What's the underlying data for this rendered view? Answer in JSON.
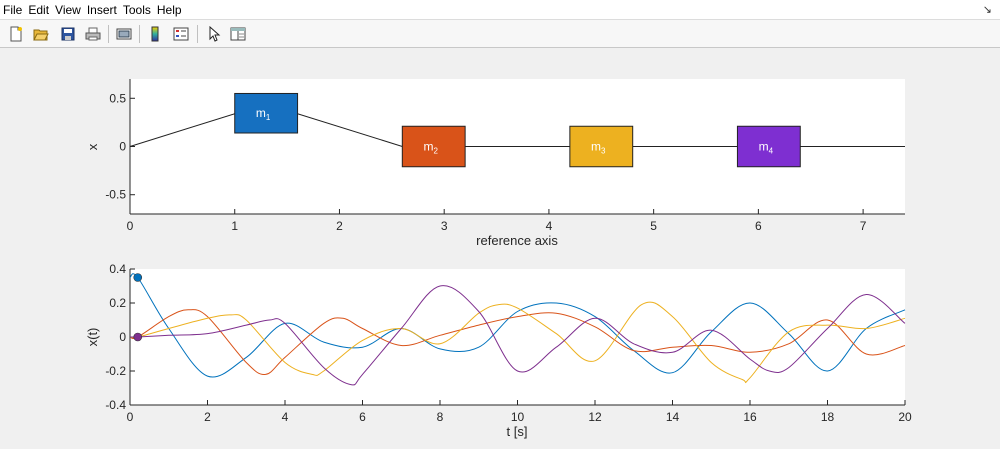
{
  "menu": [
    "File",
    "Edit",
    "View",
    "Insert",
    "Tools",
    "Help"
  ],
  "dock_glyph": "↘",
  "toolbar_icons": [
    "new-figure-icon",
    "open-file-icon",
    "save-icon",
    "print-icon",
    "print-preview-icon",
    "colorbar-icon",
    "legend-icon",
    "pointer-icon",
    "property-editor-icon"
  ],
  "colors": {
    "m1": "#1670c0",
    "m2": "#d95319",
    "m3": "#edb120",
    "m4": "#7e2fd1",
    "c1": "#0072bd",
    "c2": "#d95319",
    "c3": "#edb120",
    "c4": "#7e2f8e"
  },
  "chart_data": [
    {
      "type": "line",
      "xlabel": "reference axis",
      "ylabel": "x",
      "xlim": [
        0,
        7.4
      ],
      "ylim": [
        -0.7,
        0.7
      ],
      "xticks": [
        "0",
        "1",
        "2",
        "3",
        "4",
        "5",
        "6",
        "7"
      ],
      "yticks": [
        "-0.5",
        "0",
        "0.5"
      ],
      "grid": false,
      "spring_line": {
        "x": [
          0,
          1.0,
          1.6,
          2.6,
          3.2,
          4.2,
          4.8,
          5.8,
          6.4,
          7.4
        ],
        "y": [
          0,
          0.34,
          0.34,
          0,
          0,
          0,
          0,
          0,
          0,
          0
        ]
      },
      "masses": [
        {
          "label": "m",
          "sub": "1",
          "x0": 1.0,
          "x1": 1.6,
          "y0": 0.14,
          "y1": 0.55
        },
        {
          "label": "m",
          "sub": "2",
          "x0": 2.6,
          "x1": 3.2,
          "y0": -0.21,
          "y1": 0.21
        },
        {
          "label": "m",
          "sub": "3",
          "x0": 4.2,
          "x1": 4.8,
          "y0": -0.21,
          "y1": 0.21
        },
        {
          "label": "m",
          "sub": "4",
          "x0": 5.8,
          "x1": 6.4,
          "y0": -0.21,
          "y1": 0.21
        }
      ]
    },
    {
      "type": "line",
      "xlabel": "t [s]",
      "ylabel": "x(t)",
      "xlim": [
        0,
        20
      ],
      "ylim": [
        -0.4,
        0.4
      ],
      "xticks": [
        "0",
        "2",
        "4",
        "6",
        "8",
        "10",
        "12",
        "14",
        "16",
        "18",
        "20"
      ],
      "yticks": [
        "-0.4",
        "-0.2",
        "0",
        "0.2",
        "0.4"
      ],
      "grid": false,
      "series": [
        {
          "x": [
            0,
            0.2,
            1,
            2,
            3,
            4,
            5,
            6,
            7,
            8,
            9,
            10,
            11,
            12,
            13,
            14,
            15,
            16,
            17,
            18,
            19,
            20
          ],
          "y": [
            0.35,
            0.35,
            0.05,
            -0.23,
            -0.12,
            0.08,
            -0.03,
            -0.06,
            0.05,
            -0.07,
            -0.06,
            0.15,
            0.2,
            0.12,
            -0.08,
            -0.21,
            0.03,
            0.2,
            0.02,
            -0.2,
            0.05,
            0.16
          ]
        },
        {
          "x": [
            0,
            0.2,
            1,
            1.5,
            2,
            3,
            3.5,
            4,
            5,
            5.5,
            6,
            7,
            8,
            9,
            10,
            11,
            12,
            13,
            14,
            15,
            16,
            17,
            18,
            19,
            20
          ],
          "y": [
            0,
            0,
            0.12,
            0.16,
            0.12,
            -0.15,
            -0.22,
            -0.12,
            0.08,
            0.11,
            0.05,
            -0.05,
            0.01,
            0.07,
            0.12,
            0.14,
            0.06,
            -0.08,
            -0.06,
            -0.05,
            -0.09,
            -0.04,
            0.1,
            -0.1,
            -0.05
          ]
        },
        {
          "x": [
            0,
            0.2,
            1,
            2,
            2.6,
            3,
            4,
            4.7,
            5,
            6,
            7,
            8,
            9,
            9.5,
            10,
            11,
            12,
            13.2,
            14,
            15,
            15.8,
            16,
            17,
            18,
            19,
            20
          ],
          "y": [
            0,
            0,
            0.05,
            0.11,
            0.13,
            0.1,
            -0.15,
            -0.22,
            -0.2,
            -0.02,
            0.05,
            -0.04,
            0.14,
            0.19,
            0.17,
            0.02,
            -0.14,
            0.19,
            0.12,
            -0.15,
            -0.25,
            -0.24,
            0.03,
            0.07,
            0.05,
            0.11
          ]
        },
        {
          "x": [
            0,
            0.2,
            1,
            2,
            3,
            3.6,
            4,
            5,
            5.7,
            6,
            7,
            8,
            9,
            10,
            11,
            12,
            13,
            14,
            15,
            16,
            16.5,
            17,
            18,
            19,
            20
          ],
          "y": [
            0,
            0,
            0.01,
            0.02,
            0.07,
            0.1,
            0.08,
            -0.18,
            -0.28,
            -0.22,
            0.05,
            0.3,
            0.15,
            -0.2,
            -0.06,
            0.11,
            -0.04,
            -0.09,
            0.04,
            -0.13,
            -0.2,
            -0.18,
            0.05,
            0.25,
            0.08
          ]
        }
      ],
      "start_markers": [
        {
          "x": 0.2,
          "y": 0.35
        },
        {
          "x": 0.2,
          "y": 0
        }
      ]
    }
  ]
}
